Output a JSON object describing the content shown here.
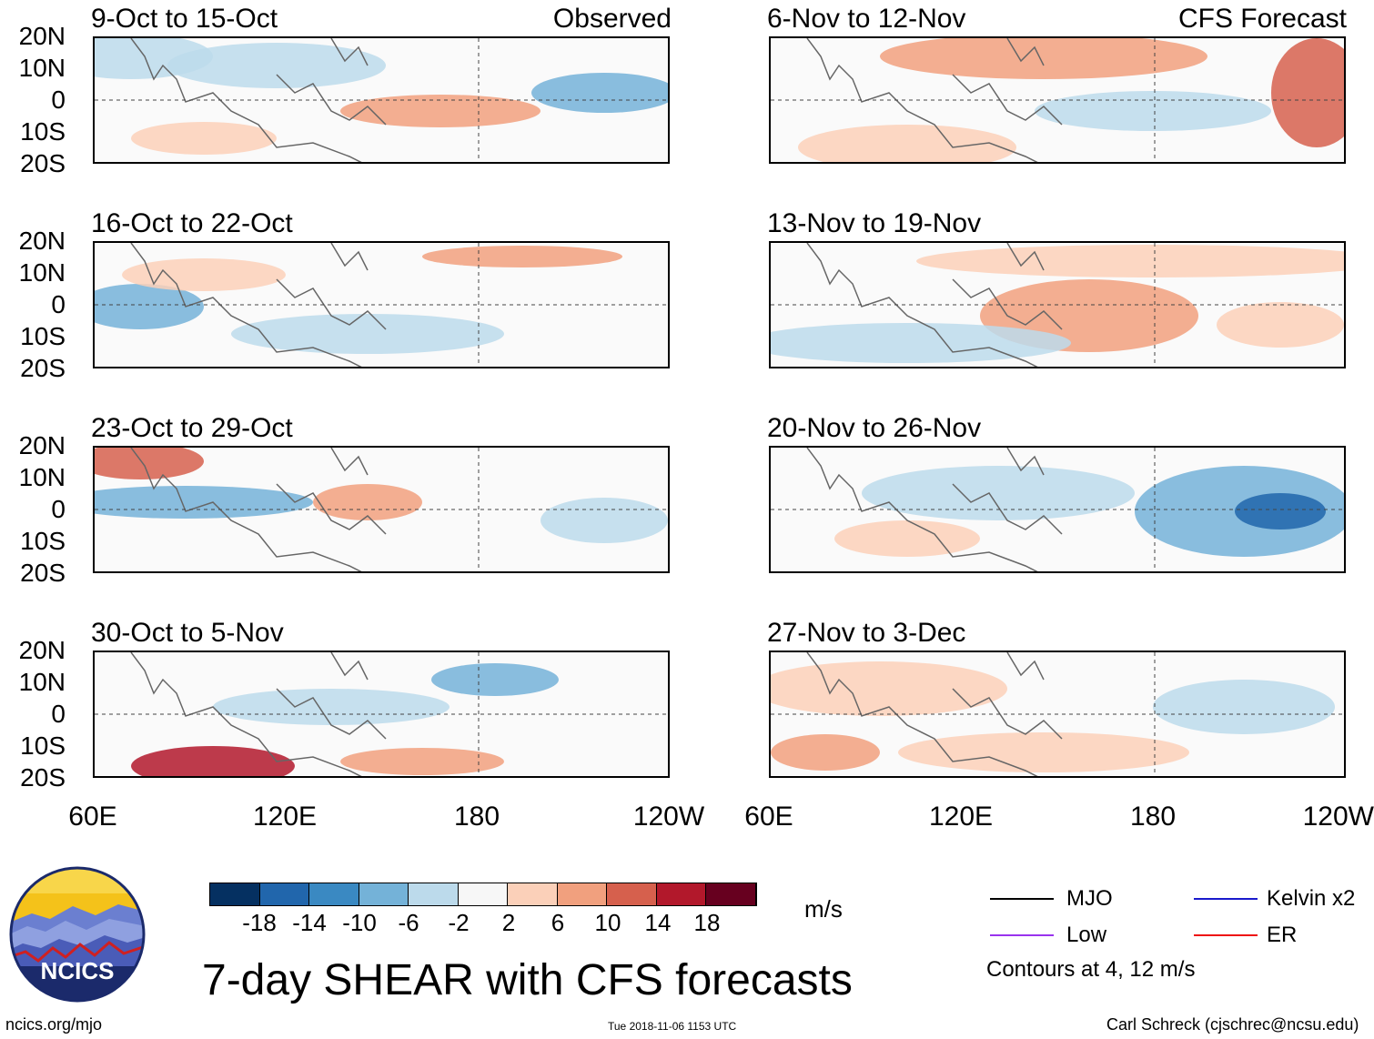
{
  "observed_label": "Observed",
  "forecast_label": "CFS Forecast",
  "panels": [
    {
      "title": "9-Oct to 15-Oct"
    },
    {
      "title": "16-Oct to 22-Oct"
    },
    {
      "title": "23-Oct to 29-Oct"
    },
    {
      "title": "30-Oct to 5-Nov"
    },
    {
      "title": "6-Nov to 12-Nov"
    },
    {
      "title": "13-Nov to 19-Nov"
    },
    {
      "title": "20-Nov to 26-Nov"
    },
    {
      "title": "27-Nov to 3-Dec"
    }
  ],
  "lat_labels": [
    "20N",
    "10N",
    "0",
    "10S",
    "20S"
  ],
  "lon_labels": [
    "60E",
    "120E",
    "180",
    "120W"
  ],
  "colorbar": {
    "colors": [
      "#053061",
      "#2166ac",
      "#3a89c2",
      "#74b2d8",
      "#bcdaeb",
      "#f7f7f7",
      "#fbd0b9",
      "#f1a07e",
      "#d6604d",
      "#b2182b",
      "#67001f"
    ],
    "labels": [
      "-18",
      "-14",
      "-10",
      "-6",
      "-2",
      "2",
      "6",
      "10",
      "14",
      "18"
    ],
    "units": "m/s"
  },
  "title": "7-day SHEAR with CFS forecasts",
  "legend": {
    "items": [
      {
        "label": "MJO",
        "color": "#000000"
      },
      {
        "label": "Kelvin x2",
        "color": "#1a1acc"
      },
      {
        "label": "Low",
        "color": "#9933ee"
      },
      {
        "label": "ER",
        "color": "#ee1111"
      }
    ],
    "note": "Contours at 4, 12 m/s"
  },
  "logo_text": "NCICS",
  "footer": {
    "url": "ncics.org/mjo",
    "timestamp": "Tue 2018-11-06 1153 UTC",
    "credit": "Carl Schreck (cjschrec@ncsu.edu)"
  }
}
